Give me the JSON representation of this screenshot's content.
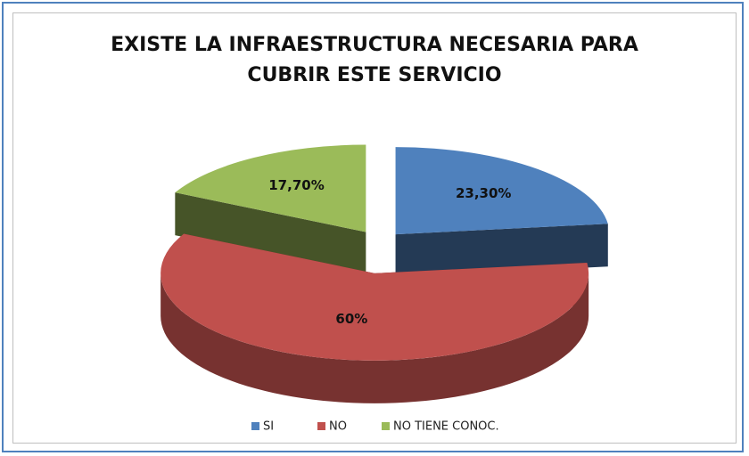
{
  "chart_data": {
    "type": "pie3d",
    "title": "EXISTE LA INFRAESTRUCTURA NECESARIA PARA CUBRIR ESTE SERVICIO",
    "categories": [
      "SI",
      "NO",
      "NO TIENE CONOC."
    ],
    "values": [
      23.3,
      60,
      17.7
    ],
    "value_labels": [
      "23,30%",
      "60%",
      "17,70%"
    ],
    "colors": [
      "#4f81bd",
      "#c0504d",
      "#9bbb59"
    ],
    "legend": "bottom"
  }
}
